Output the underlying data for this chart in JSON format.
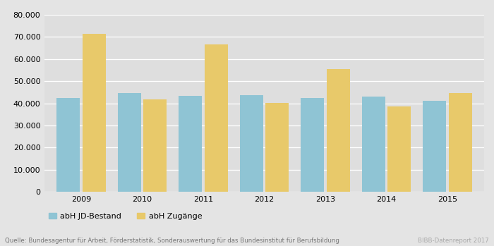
{
  "years": [
    "2009",
    "2010",
    "2011",
    "2012",
    "2013",
    "2014",
    "2015"
  ],
  "abH_JD_Bestand": [
    42500,
    44800,
    43500,
    43700,
    42500,
    43000,
    41200
  ],
  "abH_Zugaenge": [
    71500,
    41800,
    66500,
    40200,
    55500,
    38500,
    44700
  ],
  "color_bestand": "#8fc4d4",
  "color_zugaenge": "#e8c96a",
  "fig_background": "#e4e4e4",
  "plot_background": "#dedede",
  "ylim": [
    0,
    80000
  ],
  "yticks": [
    0,
    10000,
    20000,
    30000,
    40000,
    50000,
    60000,
    70000,
    80000
  ],
  "ytick_labels": [
    "0",
    "10.000",
    "20.000",
    "30.000",
    "40.000",
    "50.000",
    "60.000",
    "70.000",
    "80.000"
  ],
  "legend_bestand": "abH JD-Bestand",
  "legend_zugaenge": "abH Zugänge",
  "source_text": "Quelle: Bundesagentur für Arbeit, Förderstatistik, Sonderauswertung für das Bundesinstitut für Berufsbildung",
  "bibb_text": "BIBB-Datenreport 2017",
  "bar_width": 0.38,
  "bar_gap": 0.04
}
